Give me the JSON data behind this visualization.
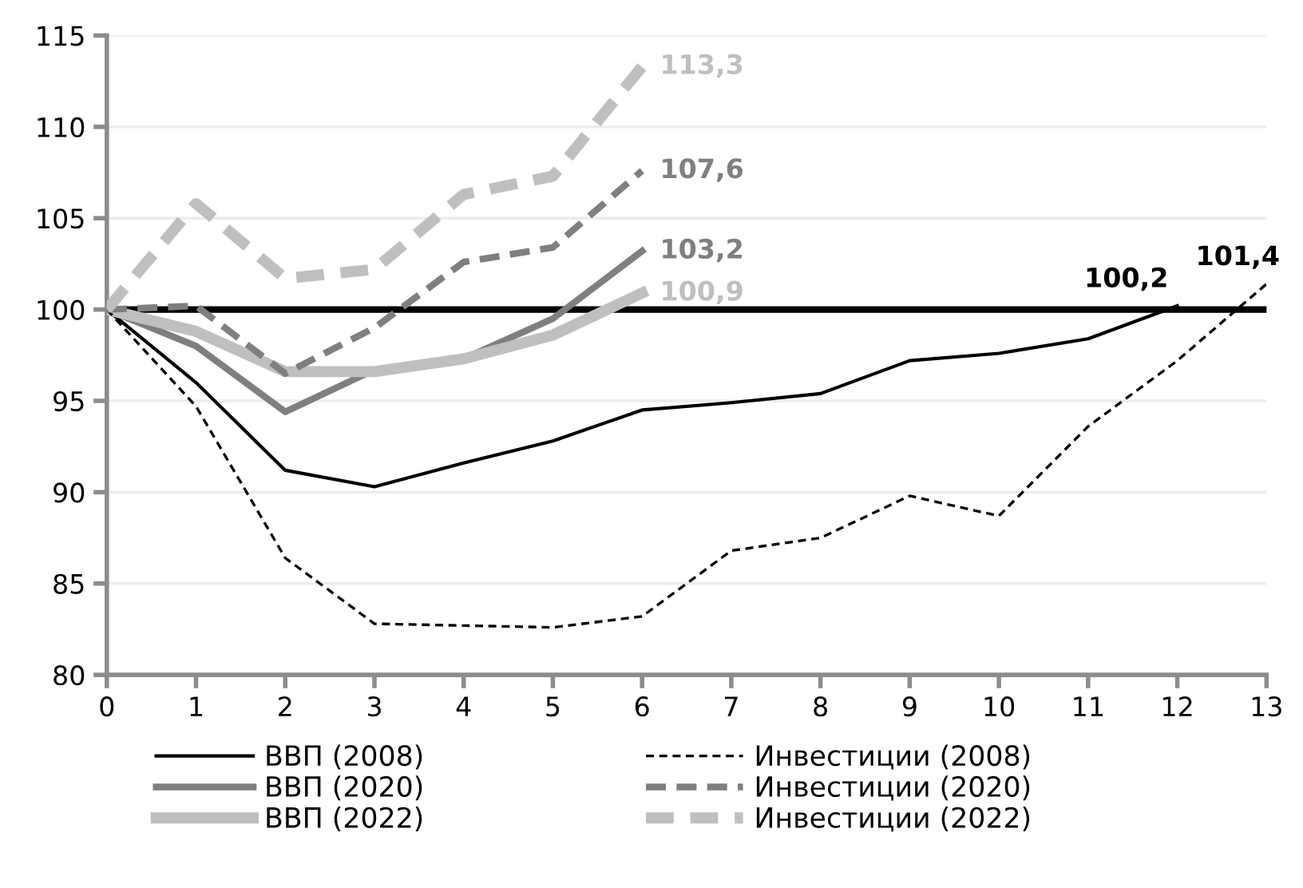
{
  "chart_data": {
    "type": "line",
    "x": [
      0,
      1,
      2,
      3,
      4,
      5,
      6,
      7,
      8,
      9,
      10,
      11,
      12,
      13
    ],
    "xlim": [
      0,
      13
    ],
    "xticks": [
      0,
      1,
      2,
      3,
      4,
      5,
      6,
      7,
      8,
      9,
      10,
      11,
      12,
      13
    ],
    "ylim": [
      80,
      115
    ],
    "yticks": [
      80,
      85,
      90,
      95,
      100,
      105,
      110,
      115
    ],
    "grid": "y",
    "legend": "bottom",
    "marker": "none",
    "ref_lines": [
      {
        "axis": "y",
        "value": 100,
        "color": "#000000"
      }
    ],
    "series": [
      {
        "name": "ВВП (2008)",
        "color": "#000000",
        "line_style": "solid",
        "values": [
          100,
          96.0,
          91.2,
          90.3,
          91.6,
          92.8,
          94.5,
          94.9,
          95.4,
          97.2,
          97.6,
          98.4,
          100.2,
          null
        ],
        "value_labels": [
          null,
          null,
          null,
          null,
          null,
          null,
          null,
          null,
          null,
          null,
          null,
          null,
          "100,2",
          null
        ]
      },
      {
        "name": "ВВП (2020)",
        "color": "#7f7f7f",
        "line_style": "solid",
        "values": [
          100,
          98.0,
          94.4,
          96.7,
          97.3,
          99.5,
          103.2,
          null,
          null,
          null,
          null,
          null,
          null,
          null
        ],
        "value_labels": [
          null,
          null,
          null,
          null,
          null,
          null,
          "103,2",
          null,
          null,
          null,
          null,
          null,
          null,
          null
        ]
      },
      {
        "name": "ВВП (2022)",
        "color": "#bfbfbf",
        "line_style": "solid",
        "values": [
          100,
          98.8,
          96.6,
          96.6,
          97.3,
          98.6,
          100.9,
          null,
          null,
          null,
          null,
          null,
          null,
          null
        ],
        "value_labels": [
          null,
          null,
          null,
          null,
          null,
          null,
          "100,9",
          null,
          null,
          null,
          null,
          null,
          null,
          null
        ]
      },
      {
        "name": "Инвестиции (2008)",
        "color": "#000000",
        "line_style": "dashed",
        "values": [
          100,
          94.7,
          86.4,
          82.8,
          82.7,
          82.6,
          83.2,
          86.8,
          87.5,
          89.8,
          88.7,
          93.6,
          97.2,
          101.4
        ],
        "value_labels": [
          null,
          null,
          null,
          null,
          null,
          null,
          null,
          null,
          null,
          null,
          null,
          null,
          null,
          "101,4"
        ]
      },
      {
        "name": "Инвестиции (2020)",
        "color": "#7f7f7f",
        "line_style": "dashed",
        "values": [
          100,
          100.2,
          96.5,
          99.0,
          102.6,
          103.4,
          107.6,
          null,
          null,
          null,
          null,
          null,
          null,
          null
        ],
        "value_labels": [
          null,
          null,
          null,
          null,
          null,
          null,
          "107,6",
          null,
          null,
          null,
          null,
          null,
          null,
          null
        ]
      },
      {
        "name": "Инвестиции (2022)",
        "color": "#bfbfbf",
        "line_style": "dashed",
        "values": [
          100,
          105.8,
          101.7,
          102.2,
          106.3,
          107.3,
          113.3,
          null,
          null,
          null,
          null,
          null,
          null,
          null
        ],
        "value_labels": [
          null,
          null,
          null,
          null,
          null,
          null,
          "113,3",
          null,
          null,
          null,
          null,
          null,
          null,
          null
        ]
      }
    ]
  }
}
